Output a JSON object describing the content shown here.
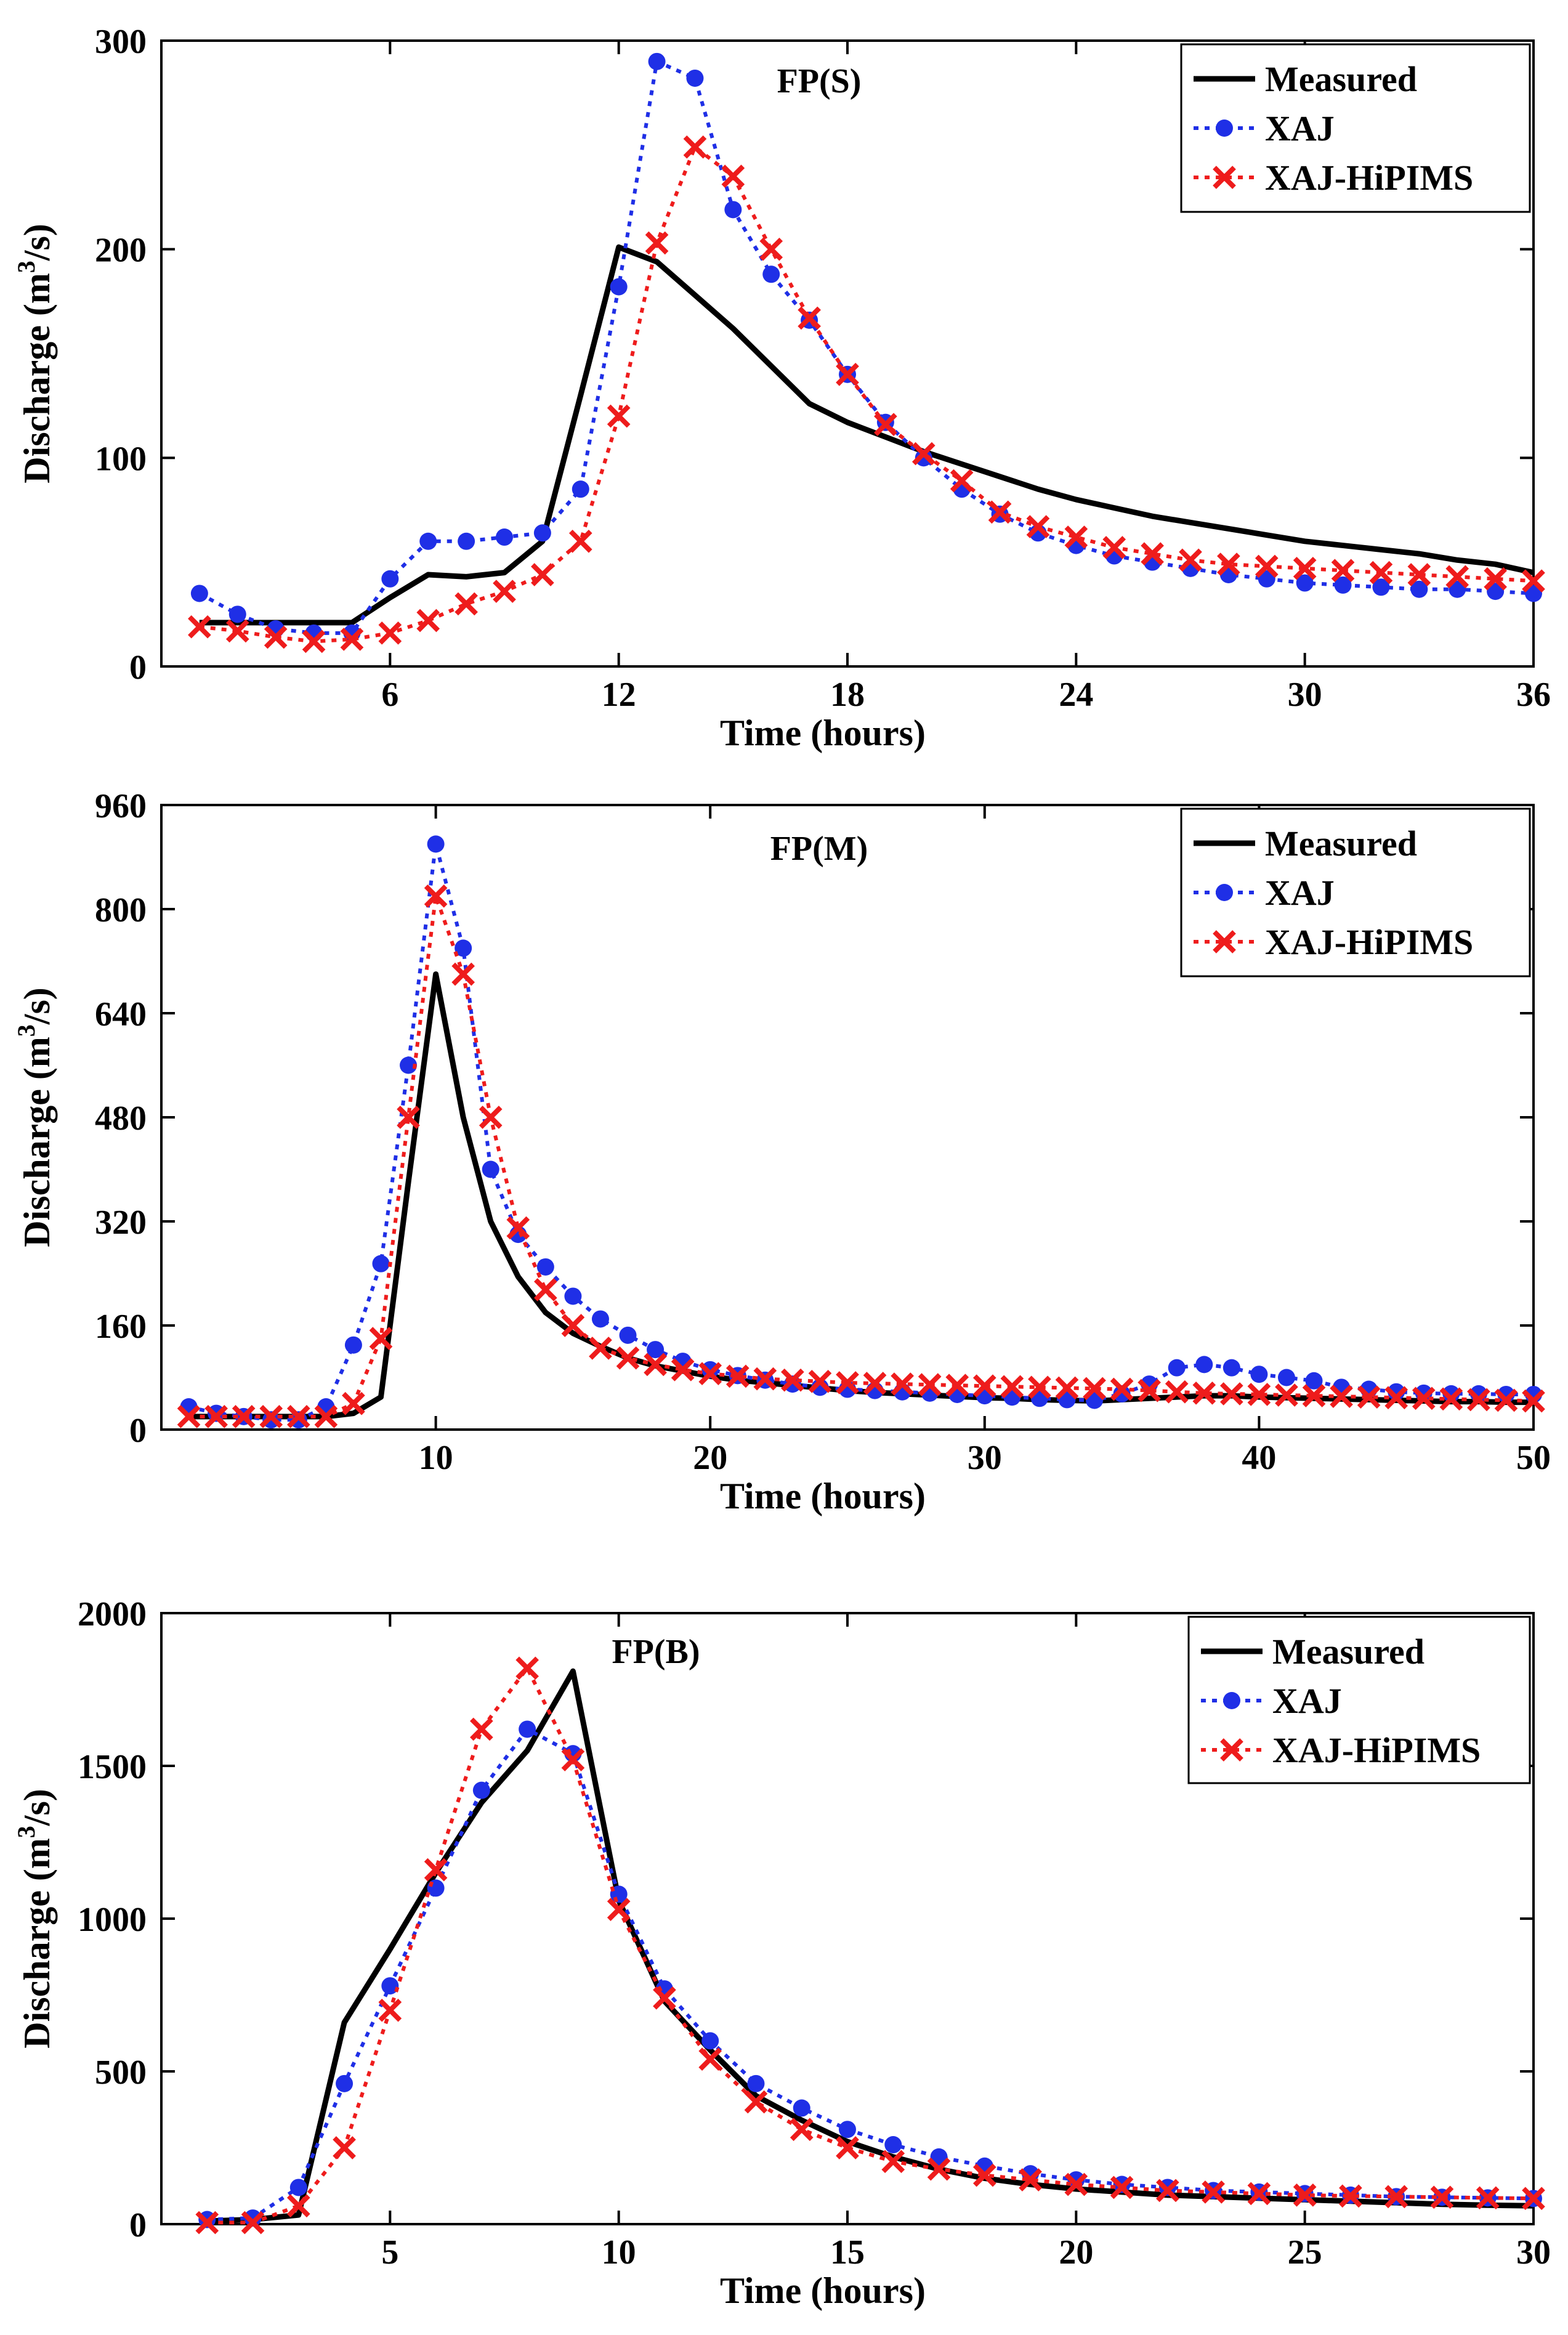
{
  "chart_data": [
    {
      "type": "line",
      "title": "FP(S)",
      "xlabel": "Time (hours)",
      "ylabel": "Discharge (m",
      "ylabel_sup": "3",
      "ylabel_tail": "/s)",
      "xlim": [
        0,
        36
      ],
      "ylim": [
        0,
        300
      ],
      "xticks": [
        6,
        12,
        18,
        24,
        30,
        36
      ],
      "yticks": [
        0,
        100,
        200,
        300
      ],
      "legend_position": "top-right",
      "grid": false,
      "series": [
        {
          "name": "Measured",
          "color": "#000000",
          "marker": "none",
          "x": [
            1,
            2,
            3,
            4,
            5,
            6,
            7,
            8,
            9,
            10,
            11,
            12,
            13,
            14,
            15,
            16,
            17,
            18,
            19,
            20,
            21,
            22,
            23,
            24,
            25,
            26,
            27,
            28,
            29,
            30,
            31,
            32,
            33,
            34,
            35,
            36
          ],
          "values": [
            21,
            21,
            21,
            21,
            21,
            33,
            44,
            43,
            45,
            60,
            130,
            201,
            194,
            178,
            162,
            144,
            126,
            117,
            110,
            103,
            97,
            91,
            85,
            80,
            76,
            72,
            69,
            66,
            63,
            60,
            58,
            56,
            54,
            51,
            49,
            45
          ]
        },
        {
          "name": "XAJ",
          "color": "#1f2fe6",
          "marker": "circle",
          "x": [
            1,
            2,
            3,
            4,
            5,
            6,
            7,
            8,
            9,
            10,
            11,
            12,
            13,
            14,
            15,
            16,
            17,
            18,
            19,
            20,
            21,
            22,
            23,
            24,
            25,
            26,
            27,
            28,
            29,
            30,
            31,
            32,
            33,
            34,
            35,
            36
          ],
          "values": [
            35,
            25,
            18,
            16,
            16,
            42,
            60,
            60,
            62,
            64,
            85,
            182,
            290,
            282,
            219,
            188,
            166,
            140,
            117,
            100,
            85,
            73,
            64,
            58,
            53,
            50,
            47,
            44,
            42,
            40,
            39,
            38,
            37,
            37,
            36,
            35
          ]
        },
        {
          "name": "XAJ-HiPIMS",
          "color": "#ee1c1c",
          "marker": "x",
          "x": [
            1,
            2,
            3,
            4,
            5,
            6,
            7,
            8,
            9,
            10,
            11,
            12,
            13,
            14,
            15,
            16,
            17,
            18,
            19,
            20,
            21,
            22,
            23,
            24,
            25,
            26,
            27,
            28,
            29,
            30,
            31,
            32,
            33,
            34,
            35,
            36
          ],
          "values": [
            19,
            17,
            14,
            12,
            13,
            16,
            22,
            30,
            36,
            44,
            60,
            120,
            203,
            249,
            235,
            200,
            167,
            140,
            116,
            102,
            89,
            74,
            67,
            62,
            57,
            54,
            51,
            49,
            48,
            47,
            46,
            45,
            44,
            43,
            42,
            41
          ]
        }
      ]
    },
    {
      "type": "line",
      "title": "FP(M)",
      "xlabel": "Time (hours)",
      "ylabel": "Discharge (m",
      "ylabel_sup": "3",
      "ylabel_tail": "/s)",
      "xlim": [
        0,
        50
      ],
      "ylim": [
        0,
        960
      ],
      "xticks": [
        10,
        20,
        30,
        40,
        50
      ],
      "yticks": [
        0,
        160,
        320,
        480,
        640,
        800,
        960
      ],
      "legend_position": "top-right",
      "grid": false,
      "series": [
        {
          "name": "Measured",
          "color": "#000000",
          "marker": "none",
          "x": [
            1,
            2,
            3,
            4,
            5,
            6,
            7,
            8,
            9,
            10,
            11,
            12,
            13,
            14,
            15,
            16,
            17,
            18,
            19,
            20,
            21,
            22,
            23,
            24,
            25,
            26,
            27,
            28,
            29,
            30,
            31,
            32,
            33,
            34,
            35,
            36,
            37,
            38,
            39,
            40,
            41,
            42,
            43,
            44,
            45,
            46,
            47,
            48,
            49,
            50
          ],
          "values": [
            20,
            20,
            20,
            20,
            20,
            20,
            25,
            50,
            380,
            700,
            480,
            320,
            235,
            180,
            148,
            128,
            110,
            98,
            90,
            82,
            76,
            72,
            68,
            64,
            60,
            57,
            55,
            53,
            51,
            49,
            48,
            46,
            45,
            44,
            46,
            48,
            50,
            52,
            52,
            50,
            49,
            48,
            47,
            46,
            45,
            44,
            43,
            43,
            42,
            42
          ]
        },
        {
          "name": "XAJ",
          "color": "#1f2fe6",
          "marker": "circle",
          "x": [
            1,
            2,
            3,
            4,
            5,
            6,
            7,
            8,
            9,
            10,
            11,
            12,
            13,
            14,
            15,
            16,
            17,
            18,
            19,
            20,
            21,
            22,
            23,
            24,
            25,
            26,
            27,
            28,
            29,
            30,
            31,
            32,
            33,
            34,
            35,
            36,
            37,
            38,
            39,
            40,
            41,
            42,
            43,
            44,
            45,
            46,
            47,
            48,
            49,
            50
          ],
          "values": [
            35,
            25,
            20,
            15,
            15,
            35,
            130,
            255,
            560,
            900,
            740,
            400,
            300,
            250,
            205,
            170,
            145,
            123,
            105,
            92,
            83,
            76,
            70,
            65,
            62,
            60,
            58,
            56,
            54,
            52,
            50,
            48,
            46,
            45,
            55,
            70,
            95,
            100,
            95,
            85,
            80,
            75,
            65,
            62,
            58,
            56,
            55,
            55,
            54,
            54
          ]
        },
        {
          "name": "XAJ-HiPIMS",
          "color": "#ee1c1c",
          "marker": "x",
          "x": [
            1,
            2,
            3,
            4,
            5,
            6,
            7,
            8,
            9,
            10,
            11,
            12,
            13,
            14,
            15,
            16,
            17,
            18,
            19,
            20,
            21,
            22,
            23,
            24,
            25,
            26,
            27,
            28,
            29,
            30,
            31,
            32,
            33,
            34,
            35,
            36,
            37,
            38,
            39,
            40,
            41,
            42,
            43,
            44,
            45,
            46,
            47,
            48,
            49,
            50
          ],
          "values": [
            20,
            20,
            20,
            20,
            20,
            20,
            40,
            140,
            480,
            820,
            700,
            480,
            310,
            215,
            160,
            125,
            110,
            100,
            92,
            86,
            82,
            78,
            76,
            74,
            72,
            71,
            70,
            69,
            68,
            67,
            66,
            65,
            64,
            63,
            62,
            60,
            58,
            56,
            55,
            54,
            53,
            52,
            51,
            50,
            49,
            48,
            47,
            46,
            45,
            44
          ]
        }
      ]
    },
    {
      "type": "line",
      "title": "FP(B)",
      "xlabel": "Time (hours)",
      "ylabel": "Discharge (m",
      "ylabel_sup": "3",
      "ylabel_tail": "/s)",
      "xlim": [
        0,
        30
      ],
      "ylim": [
        0,
        2000
      ],
      "xticks": [
        5,
        10,
        15,
        20,
        25,
        30
      ],
      "yticks": [
        0,
        500,
        1000,
        1500,
        2000
      ],
      "legend_position": "top-right",
      "grid": false,
      "series": [
        {
          "name": "Measured",
          "color": "#000000",
          "marker": "none",
          "x": [
            1,
            2,
            3,
            4,
            5,
            6,
            7,
            8,
            9,
            10,
            11,
            12,
            13,
            14,
            15,
            16,
            17,
            18,
            19,
            20,
            21,
            22,
            23,
            24,
            25,
            26,
            27,
            28,
            29,
            30
          ],
          "values": [
            10,
            15,
            30,
            660,
            900,
            1150,
            1380,
            1550,
            1810,
            1060,
            730,
            570,
            420,
            340,
            270,
            220,
            180,
            150,
            130,
            115,
            105,
            95,
            90,
            85,
            80,
            75,
            70,
            65,
            62,
            60
          ]
        },
        {
          "name": "XAJ",
          "color": "#1f2fe6",
          "marker": "circle",
          "x": [
            1,
            2,
            3,
            4,
            5,
            6,
            7,
            8,
            9,
            10,
            11,
            12,
            13,
            14,
            15,
            16,
            17,
            18,
            19,
            20,
            21,
            22,
            23,
            24,
            25,
            26,
            27,
            28,
            29,
            30
          ],
          "values": [
            15,
            20,
            120,
            460,
            780,
            1100,
            1420,
            1620,
            1540,
            1080,
            770,
            600,
            460,
            380,
            310,
            260,
            220,
            190,
            165,
            145,
            130,
            120,
            110,
            105,
            100,
            95,
            90,
            88,
            86,
            84
          ]
        },
        {
          "name": "XAJ-HiPIMS",
          "color": "#ee1c1c",
          "marker": "x",
          "x": [
            1,
            2,
            3,
            4,
            5,
            6,
            7,
            8,
            9,
            10,
            11,
            12,
            13,
            14,
            15,
            16,
            17,
            18,
            19,
            20,
            21,
            22,
            23,
            24,
            25,
            26,
            27,
            28,
            29,
            30
          ],
          "values": [
            5,
            5,
            60,
            250,
            700,
            1160,
            1620,
            1820,
            1520,
            1030,
            740,
            540,
            400,
            310,
            250,
            205,
            180,
            160,
            145,
            130,
            120,
            110,
            105,
            100,
            95,
            92,
            90,
            88,
            86,
            84
          ]
        }
      ]
    }
  ]
}
